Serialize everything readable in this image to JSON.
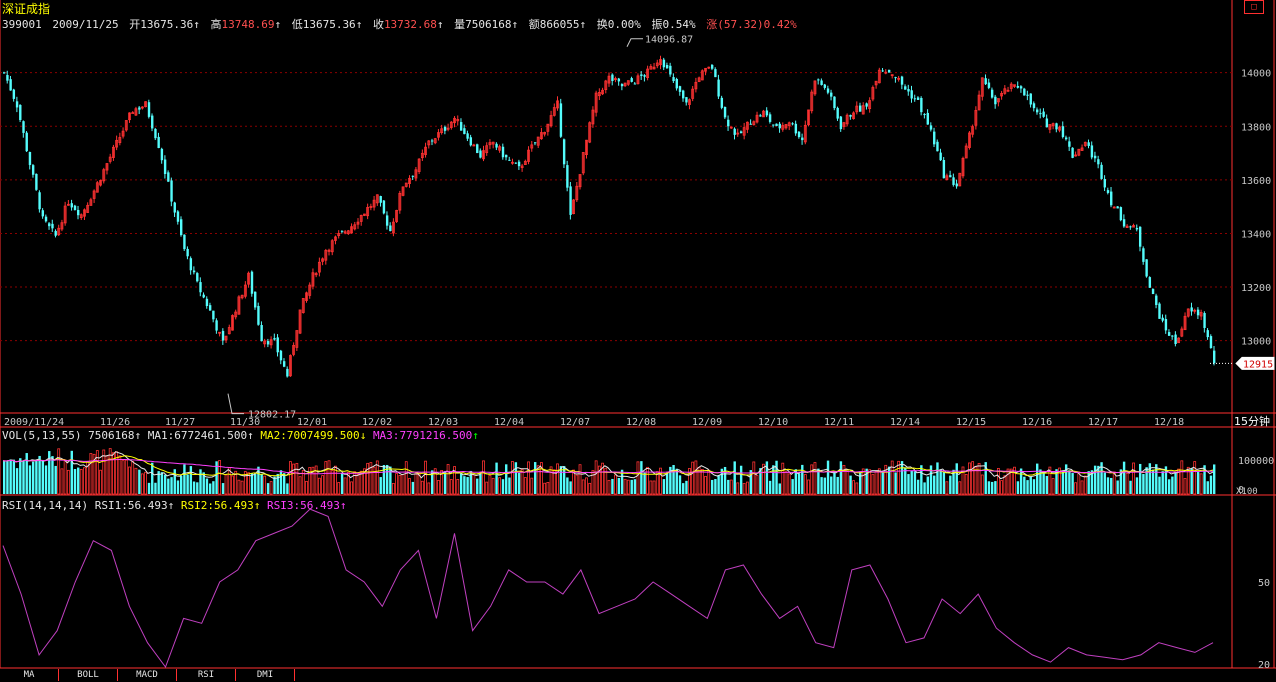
{
  "window": {
    "title": "深证成指",
    "control_icon": "window-restore-icon"
  },
  "quote": {
    "code": "399001",
    "date": "2009/11/25",
    "open_label": "开",
    "open": "13675.36",
    "high_label": "高",
    "high": "13748.69",
    "low_label": "低",
    "low": "13675.36",
    "close_label": "收",
    "close": "13732.68",
    "volume_label": "量",
    "volume": "7506168",
    "amount_label": "额",
    "amount": "866055",
    "turnover_label": "换",
    "turnover": "0.00%",
    "amplitude_label": "振",
    "amplitude": "0.54%",
    "change_label": "涨",
    "change": "(57.32)0.42%",
    "arrow": "↑"
  },
  "colors": {
    "up": "#ff3232",
    "down": "#54fcfc",
    "grid": "#8b0000",
    "frame": "#ff3030",
    "rsi": "#c040c0",
    "ma1": "#e6e6e6",
    "ma2": "#ffff00",
    "ma3": "#ff40ff"
  },
  "main_panel": {
    "period_label": "15分钟",
    "current_price_tag": "12915",
    "max_annotation": "14096.87",
    "min_annotation": "12802.17",
    "y_labels": [
      "14000",
      "13800",
      "13600",
      "13400",
      "13200",
      "13000"
    ]
  },
  "date_axis": [
    "2009/11/24",
    "11/26",
    "11/27",
    "11/30",
    "12/01",
    "12/02",
    "12/03",
    "12/04",
    "12/07",
    "12/08",
    "12/09",
    "12/10",
    "12/11",
    "12/14",
    "12/15",
    "12/16",
    "12/17",
    "12/18"
  ],
  "volume_panel": {
    "name": "VOL(5,13,55)",
    "value": "7506168",
    "ma1_label": "MA1:",
    "ma1": "6772461.500",
    "ma1_arrow": "↑",
    "ma2_label": "MA2:",
    "ma2": "7007499.500",
    "ma2_arrow": "↓",
    "ma3_label": "MA3:",
    "ma3": "7791216.500",
    "ma3_arrow": "↑",
    "y_labels": [
      "100000",
      "0"
    ],
    "unit": "X100"
  },
  "rsi_panel": {
    "name": "RSI(14,14,14)",
    "rsi1_label": "RSI1:",
    "rsi1": "56.493",
    "rsi1_arrow": "↑",
    "rsi2_label": "RSI2:",
    "rsi2": "56.493",
    "rsi2_arrow": "↑",
    "rsi3_label": "RSI3:",
    "rsi3": "56.493",
    "rsi3_arrow": "↑",
    "y_labels": [
      "50",
      "20"
    ]
  },
  "tabs": [
    "MA",
    "BOLL",
    "MACD",
    "RSI",
    "DMI"
  ],
  "chart_data": {
    "type": "candlestick",
    "price_range": [
      12730,
      14260
    ],
    "close_path": [
      [
        0,
        14000
      ],
      [
        4,
        13880
      ],
      [
        8,
        13660
      ],
      [
        12,
        13450
      ],
      [
        16,
        13390
      ],
      [
        20,
        13520
      ],
      [
        24,
        13470
      ],
      [
        28,
        13560
      ],
      [
        32,
        13660
      ],
      [
        36,
        13760
      ],
      [
        40,
        13860
      ],
      [
        44,
        13880
      ],
      [
        48,
        13730
      ],
      [
        52,
        13530
      ],
      [
        56,
        13340
      ],
      [
        60,
        13210
      ],
      [
        64,
        13110
      ],
      [
        68,
        12990
      ],
      [
        72,
        13120
      ],
      [
        76,
        13240
      ],
      [
        80,
        13010
      ],
      [
        84,
        12990
      ],
      [
        88,
        12870
      ],
      [
        92,
        13110
      ],
      [
        96,
        13240
      ],
      [
        100,
        13340
      ],
      [
        104,
        13390
      ],
      [
        108,
        13430
      ],
      [
        112,
        13480
      ],
      [
        116,
        13530
      ],
      [
        120,
        13410
      ],
      [
        124,
        13580
      ],
      [
        128,
        13640
      ],
      [
        132,
        13740
      ],
      [
        136,
        13780
      ],
      [
        140,
        13830
      ],
      [
        144,
        13760
      ],
      [
        148,
        13690
      ],
      [
        152,
        13740
      ],
      [
        156,
        13680
      ],
      [
        160,
        13640
      ],
      [
        164,
        13720
      ],
      [
        168,
        13790
      ],
      [
        172,
        13880
      ],
      [
        176,
        13460
      ],
      [
        180,
        13690
      ],
      [
        184,
        13910
      ],
      [
        188,
        13980
      ],
      [
        192,
        13950
      ],
      [
        196,
        13970
      ],
      [
        200,
        14000
      ],
      [
        204,
        14060
      ],
      [
        208,
        13960
      ],
      [
        212,
        13880
      ],
      [
        216,
        13990
      ],
      [
        220,
        14020
      ],
      [
        224,
        13830
      ],
      [
        228,
        13760
      ],
      [
        232,
        13820
      ],
      [
        236,
        13850
      ],
      [
        240,
        13790
      ],
      [
        244,
        13820
      ],
      [
        248,
        13750
      ],
      [
        252,
        13980
      ],
      [
        256,
        13930
      ],
      [
        260,
        13800
      ],
      [
        264,
        13860
      ],
      [
        268,
        13870
      ],
      [
        272,
        14020
      ],
      [
        276,
        14000
      ],
      [
        280,
        13940
      ],
      [
        284,
        13890
      ],
      [
        288,
        13780
      ],
      [
        292,
        13620
      ],
      [
        296,
        13580
      ],
      [
        300,
        13760
      ],
      [
        304,
        13970
      ],
      [
        308,
        13890
      ],
      [
        312,
        13940
      ],
      [
        316,
        13950
      ],
      [
        320,
        13860
      ],
      [
        324,
        13810
      ],
      [
        328,
        13800
      ],
      [
        332,
        13690
      ],
      [
        336,
        13740
      ],
      [
        340,
        13650
      ],
      [
        344,
        13520
      ],
      [
        348,
        13440
      ],
      [
        352,
        13410
      ],
      [
        356,
        13200
      ],
      [
        360,
        13060
      ],
      [
        364,
        12990
      ],
      [
        368,
        13110
      ],
      [
        372,
        13100
      ],
      [
        376,
        12920
      ]
    ],
    "rsi_path": [
      [
        0,
        70
      ],
      [
        5,
        50
      ],
      [
        10,
        25
      ],
      [
        15,
        35
      ],
      [
        20,
        55
      ],
      [
        25,
        72
      ],
      [
        30,
        68
      ],
      [
        35,
        45
      ],
      [
        40,
        30
      ],
      [
        45,
        20
      ],
      [
        50,
        40
      ],
      [
        55,
        38
      ],
      [
        60,
        55
      ],
      [
        65,
        60
      ],
      [
        70,
        72
      ],
      [
        75,
        75
      ],
      [
        80,
        78
      ],
      [
        85,
        85
      ],
      [
        90,
        82
      ],
      [
        95,
        60
      ],
      [
        100,
        55
      ],
      [
        105,
        45
      ],
      [
        110,
        60
      ],
      [
        115,
        68
      ],
      [
        120,
        40
      ],
      [
        125,
        75
      ],
      [
        130,
        35
      ],
      [
        135,
        45
      ],
      [
        140,
        60
      ],
      [
        145,
        55
      ],
      [
        150,
        55
      ],
      [
        155,
        50
      ],
      [
        160,
        60
      ],
      [
        165,
        42
      ],
      [
        170,
        45
      ],
      [
        175,
        48
      ],
      [
        180,
        55
      ],
      [
        185,
        50
      ],
      [
        190,
        45
      ],
      [
        195,
        40
      ],
      [
        200,
        60
      ],
      [
        205,
        62
      ],
      [
        210,
        50
      ],
      [
        215,
        40
      ],
      [
        220,
        45
      ],
      [
        225,
        30
      ],
      [
        230,
        28
      ],
      [
        235,
        60
      ],
      [
        240,
        62
      ],
      [
        245,
        48
      ],
      [
        250,
        30
      ],
      [
        255,
        32
      ],
      [
        260,
        48
      ],
      [
        265,
        42
      ],
      [
        270,
        50
      ],
      [
        275,
        36
      ],
      [
        280,
        30
      ],
      [
        285,
        25
      ],
      [
        290,
        22
      ],
      [
        295,
        28
      ],
      [
        300,
        25
      ],
      [
        305,
        24
      ],
      [
        310,
        23
      ],
      [
        315,
        25
      ],
      [
        320,
        30
      ],
      [
        325,
        28
      ],
      [
        330,
        26
      ],
      [
        335,
        30
      ]
    ]
  }
}
